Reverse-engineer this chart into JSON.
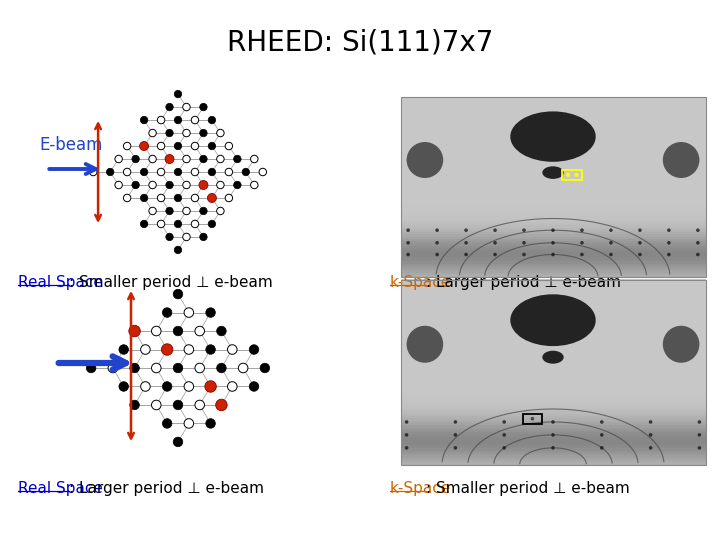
{
  "title": "RHEED: Si(111)7x7",
  "title_fontsize": 20,
  "background_color": "#ffffff",
  "label_top_left": "Real Space",
  "label_top_left_rest": ": Smaller period ⊥ e-beam",
  "label_top_right": "k-Space",
  "label_top_right_rest": ": Larger period ⊥ e-beam",
  "label_bot_left": "Real Space",
  "label_bot_left_rest": ": Larger period ⊥ e-beam",
  "label_bot_right": "k-Space",
  "label_bot_right_rest": ": Smaller period ⊥ e-beam",
  "ebeam_label": "E-beam",
  "label_color_realspace": "#0000cc",
  "label_color_kspace": "#cc6600",
  "label_fontsize": 11,
  "arrow_color": "#2244cc",
  "redbar_color": "#cc2200"
}
